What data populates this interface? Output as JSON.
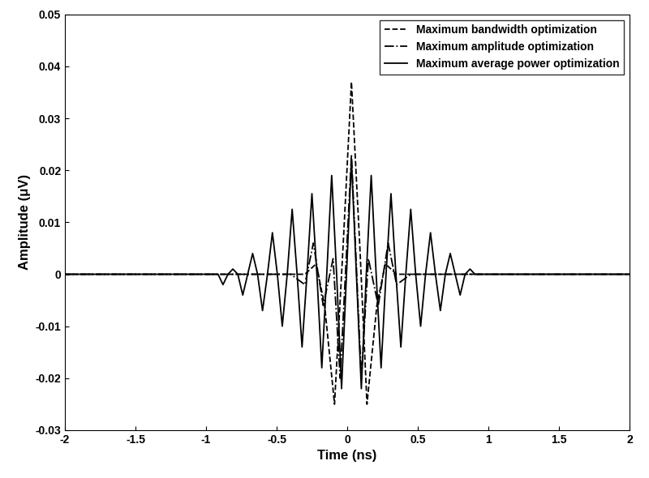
{
  "chart_data": {
    "type": "line",
    "x_label": "Time (ns)",
    "y_label": "Amplitude (μV)",
    "xlim": [
      -2,
      2
    ],
    "ylim": [
      -0.03,
      0.05
    ],
    "xticks": [
      -2,
      -1.5,
      -1,
      -0.5,
      0,
      0.5,
      1,
      1.5,
      2
    ],
    "yticks": [
      -0.03,
      -0.02,
      -0.01,
      0,
      0.01,
      0.02,
      0.03,
      0.04,
      0.05
    ],
    "grid": false,
    "legend": "upper right",
    "series": [
      {
        "name": "Maximum bandwidth optimization",
        "color": "#000000",
        "line_style": "dashed",
        "x": [
          -2,
          -0.3,
          -0.22,
          -0.16,
          -0.09,
          -0.03,
          0.03,
          0.09,
          0.14,
          0.21,
          0.27,
          0.35,
          2
        ],
        "values": [
          0,
          0,
          0.002,
          -0.006,
          -0.025,
          0.005,
          0.037,
          0.005,
          -0.025,
          -0.006,
          0.002,
          0,
          0
        ]
      },
      {
        "name": "Maximum amplitude optimization",
        "color": "#000000",
        "line_style": "dashdot",
        "x": [
          -2,
          -0.4,
          -0.3,
          -0.24,
          -0.17,
          -0.1,
          -0.05,
          0.03,
          0.1,
          0.15,
          0.22,
          0.29,
          0.35,
          0.45,
          2
        ],
        "values": [
          0,
          0,
          -0.002,
          0.006,
          -0.006,
          0.003,
          -0.02,
          0.023,
          -0.02,
          0.003,
          -0.006,
          0.006,
          -0.002,
          0,
          0
        ]
      },
      {
        "name": "Maximum average power optimization",
        "color": "#000000",
        "line_style": "solid",
        "x": [
          -2,
          -0.915,
          -0.88,
          -0.845,
          -0.81,
          -0.775,
          -0.74,
          -0.705,
          -0.67,
          -0.635,
          -0.6,
          -0.565,
          -0.53,
          -0.495,
          -0.46,
          -0.425,
          -0.39,
          -0.355,
          -0.32,
          -0.285,
          -0.25,
          -0.215,
          -0.18,
          -0.145,
          -0.11,
          -0.075,
          -0.04,
          -0.005,
          0.03,
          0.065,
          0.1,
          0.135,
          0.17,
          0.205,
          0.24,
          0.275,
          0.31,
          0.345,
          0.38,
          0.415,
          0.45,
          0.485,
          0.52,
          0.555,
          0.59,
          0.625,
          0.66,
          0.695,
          0.73,
          0.765,
          0.8,
          0.835,
          0.87,
          0.905,
          2
        ],
        "values": [
          0,
          0,
          -0.002,
          0,
          0.001,
          0,
          -0.004,
          0,
          0.004,
          0,
          -0.007,
          0,
          0.008,
          0,
          -0.01,
          0,
          0.0125,
          0,
          -0.014,
          0,
          0.0155,
          0,
          -0.018,
          0,
          0.019,
          0,
          -0.022,
          0,
          0.022,
          0,
          -0.022,
          0,
          0.019,
          0,
          -0.018,
          0,
          0.0155,
          0,
          -0.014,
          0,
          0.0125,
          0,
          -0.01,
          0,
          0.008,
          0,
          -0.007,
          0,
          0.004,
          0,
          -0.004,
          0,
          0.001,
          0,
          0
        ]
      }
    ]
  }
}
